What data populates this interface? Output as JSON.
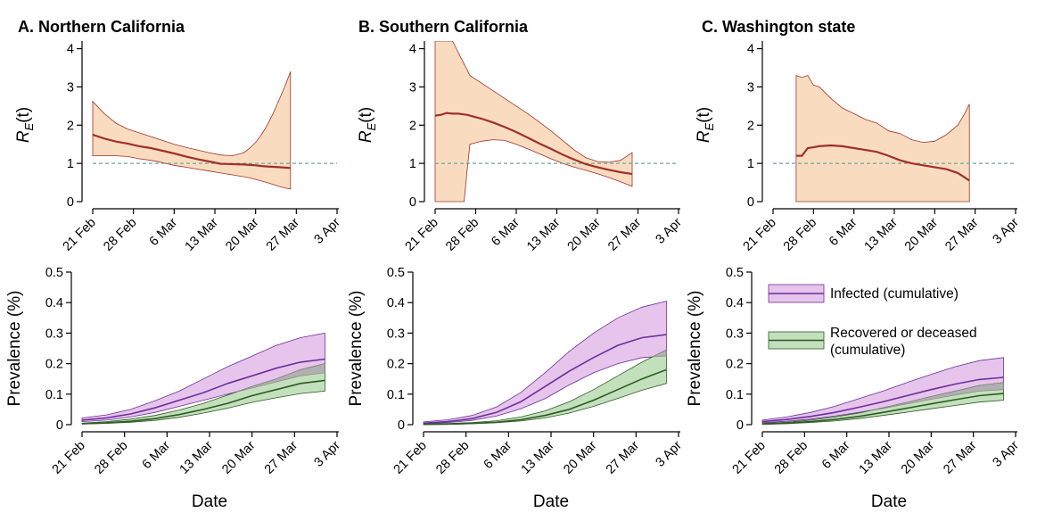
{
  "chart_data": [
    {
      "id": "A_re",
      "type": "line",
      "title": "A. Northern California",
      "ylabel_main": "R",
      "ylabel_sub": "E",
      "ylabel_suffix": "(t)",
      "xlabel": "",
      "xticks": [
        "21 Feb",
        "28 Feb",
        "6 Mar",
        "13 Mar",
        "20 Mar",
        "27 Mar",
        "3 Apr"
      ],
      "xlim": [
        0,
        42
      ],
      "ylim": [
        0,
        4.2
      ],
      "yticks": [
        "0",
        "1",
        "2",
        "3",
        "4"
      ],
      "reference_line": 1,
      "colors": {
        "band": "#f9dcc0",
        "line": "#a0302a",
        "ref": "#6aa7a0"
      },
      "series": [
        {
          "x": [
            0,
            2,
            4,
            6,
            8,
            10,
            12,
            14,
            16,
            18,
            20,
            22,
            24,
            26,
            27,
            28,
            29,
            30,
            31,
            32,
            33,
            34
          ],
          "values": [
            1.75,
            1.65,
            1.57,
            1.52,
            1.45,
            1.4,
            1.33,
            1.26,
            1.18,
            1.11,
            1.05,
            0.99,
            0.98,
            0.97,
            0.96,
            0.95,
            0.93,
            0.92,
            0.91,
            0.9,
            0.89,
            0.88
          ],
          "lower": [
            1.2,
            1.2,
            1.2,
            1.18,
            1.12,
            1.08,
            1.02,
            0.95,
            0.9,
            0.85,
            0.8,
            0.75,
            0.7,
            0.65,
            0.62,
            0.58,
            0.54,
            0.5,
            0.45,
            0.4,
            0.36,
            0.33
          ],
          "upper": [
            2.62,
            2.3,
            2.05,
            1.9,
            1.8,
            1.7,
            1.6,
            1.5,
            1.42,
            1.35,
            1.28,
            1.22,
            1.2,
            1.28,
            1.4,
            1.55,
            1.75,
            2.0,
            2.3,
            2.65,
            3.0,
            3.4
          ]
        }
      ]
    },
    {
      "id": "B_re",
      "type": "line",
      "title": "B. Southern California",
      "ylabel_main": "R",
      "ylabel_sub": "E",
      "ylabel_suffix": "(t)",
      "xlabel": "",
      "xticks": [
        "21 Feb",
        "28 Feb",
        "6 Mar",
        "13 Mar",
        "20 Mar",
        "27 Mar",
        "3 Apr"
      ],
      "xlim": [
        0,
        42
      ],
      "ylim": [
        0,
        4.2
      ],
      "yticks": [
        "0",
        "1",
        "2",
        "3",
        "4"
      ],
      "reference_line": 1,
      "colors": {
        "band": "#f9dcc0",
        "line": "#a0302a",
        "ref": "#6aa7a0"
      },
      "series": [
        {
          "x": [
            0,
            1,
            2,
            3,
            4,
            5,
            5.5,
            6,
            8,
            10,
            12,
            14,
            16,
            18,
            20,
            22,
            24,
            26,
            28,
            30,
            32,
            34
          ],
          "values": [
            2.25,
            2.27,
            2.32,
            2.3,
            2.3,
            2.28,
            2.27,
            2.25,
            2.17,
            2.07,
            1.95,
            1.82,
            1.67,
            1.52,
            1.38,
            1.23,
            1.1,
            0.98,
            0.9,
            0.83,
            0.77,
            0.72
          ],
          "lower": [
            0,
            0,
            0,
            0,
            0,
            0,
            0.8,
            1.5,
            1.58,
            1.62,
            1.6,
            1.5,
            1.38,
            1.25,
            1.12,
            1.0,
            0.9,
            0.82,
            0.73,
            0.63,
            0.52,
            0.4
          ],
          "upper": [
            4.2,
            4.2,
            4.2,
            4.2,
            3.9,
            3.6,
            3.45,
            3.3,
            3.1,
            2.9,
            2.7,
            2.5,
            2.3,
            2.08,
            1.85,
            1.6,
            1.35,
            1.15,
            1.05,
            1.03,
            1.08,
            1.28
          ]
        }
      ]
    },
    {
      "id": "C_re",
      "type": "line",
      "title": "C. Washington state",
      "ylabel_main": "R",
      "ylabel_sub": "E",
      "ylabel_suffix": "(t)",
      "xlabel": "",
      "xticks": [
        "21 Feb",
        "28 Feb",
        "6 Mar",
        "13 Mar",
        "20 Mar",
        "27 Mar",
        "3 Apr"
      ],
      "xlim": [
        0,
        42
      ],
      "ylim": [
        0,
        4.2
      ],
      "yticks": [
        "0",
        "1",
        "2",
        "3",
        "4"
      ],
      "reference_line": 1,
      "colors": {
        "band": "#f9dcc0",
        "line": "#a0302a",
        "ref": "#6aa7a0"
      },
      "series": [
        {
          "x": [
            4,
            5,
            6,
            7,
            8,
            10,
            12,
            14,
            16,
            18,
            20,
            22,
            24,
            26,
            28,
            30,
            32,
            33,
            34
          ],
          "values": [
            1.2,
            1.2,
            1.4,
            1.42,
            1.45,
            1.47,
            1.45,
            1.4,
            1.35,
            1.3,
            1.2,
            1.08,
            1.0,
            0.95,
            0.9,
            0.85,
            0.75,
            0.65,
            0.55
          ],
          "lower": [
            0,
            0,
            0,
            0,
            0,
            0,
            0,
            0,
            0,
            0,
            0,
            0,
            0,
            0,
            0,
            0,
            0,
            0,
            0
          ],
          "upper": [
            3.3,
            3.25,
            3.3,
            3.05,
            3.0,
            2.7,
            2.45,
            2.3,
            2.15,
            2.05,
            1.85,
            1.78,
            1.62,
            1.55,
            1.58,
            1.75,
            2.0,
            2.25,
            2.55
          ]
        }
      ]
    },
    {
      "id": "A_prev",
      "type": "area",
      "title": "",
      "ylabel": "Prevalence (%)",
      "xlabel": "Date",
      "xticks": [
        "21 Feb",
        "28 Feb",
        "6 Mar",
        "13 Mar",
        "20 Mar",
        "27 Mar",
        "3 Apr"
      ],
      "xlim": [
        0,
        42
      ],
      "ylim": [
        0,
        0.5
      ],
      "yticks": [
        "0",
        "0.1",
        "0.2",
        "0.3",
        "0.4",
        "0.5"
      ],
      "colors": {
        "infected_band": "#e7c4eb",
        "infected_line": "#6a2f9a",
        "recovered_band": "#c3e0bd",
        "recovered_line": "#2d5a23",
        "overlap": "#b0b0b0"
      },
      "x": [
        0,
        4,
        8,
        12,
        16,
        20,
        24,
        28,
        32,
        36,
        40
      ],
      "series": [
        {
          "name": "Infected (cumulative)",
          "values": [
            0.015,
            0.022,
            0.035,
            0.055,
            0.08,
            0.105,
            0.135,
            0.16,
            0.185,
            0.205,
            0.215
          ],
          "lower": [
            0.01,
            0.015,
            0.025,
            0.04,
            0.06,
            0.08,
            0.1,
            0.12,
            0.14,
            0.16,
            0.17
          ],
          "upper": [
            0.022,
            0.032,
            0.05,
            0.078,
            0.11,
            0.15,
            0.19,
            0.225,
            0.26,
            0.285,
            0.3
          ]
        },
        {
          "name": "Recovered or deceased (cumulative)",
          "values": [
            0.003,
            0.006,
            0.011,
            0.02,
            0.033,
            0.05,
            0.07,
            0.095,
            0.115,
            0.135,
            0.145
          ],
          "lower": [
            0.002,
            0.004,
            0.008,
            0.014,
            0.024,
            0.038,
            0.054,
            0.073,
            0.088,
            0.102,
            0.11
          ],
          "upper": [
            0.005,
            0.01,
            0.018,
            0.03,
            0.048,
            0.07,
            0.097,
            0.125,
            0.15,
            0.18,
            0.2
          ]
        }
      ]
    },
    {
      "id": "B_prev",
      "type": "area",
      "title": "",
      "ylabel": "Prevalence (%)",
      "xlabel": "Date",
      "xticks": [
        "21 Feb",
        "28 Feb",
        "6 Mar",
        "13 Mar",
        "20 Mar",
        "27 Mar",
        "3 Apr"
      ],
      "xlim": [
        0,
        42
      ],
      "ylim": [
        0,
        0.5
      ],
      "yticks": [
        "0",
        "0.1",
        "0.2",
        "0.3",
        "0.4",
        "0.5"
      ],
      "colors": {
        "infected_band": "#e7c4eb",
        "infected_line": "#6a2f9a",
        "recovered_band": "#c3e0bd",
        "recovered_line": "#2d5a23",
        "overlap": "#b0b0b0"
      },
      "x": [
        0,
        4,
        8,
        12,
        16,
        20,
        24,
        28,
        32,
        36,
        40
      ],
      "series": [
        {
          "name": "Infected (cumulative)",
          "values": [
            0.005,
            0.01,
            0.02,
            0.04,
            0.075,
            0.125,
            0.175,
            0.22,
            0.26,
            0.285,
            0.295
          ],
          "lower": [
            0.003,
            0.007,
            0.014,
            0.028,
            0.052,
            0.085,
            0.13,
            0.17,
            0.2,
            0.22,
            0.225
          ],
          "upper": [
            0.009,
            0.016,
            0.03,
            0.058,
            0.105,
            0.17,
            0.24,
            0.3,
            0.35,
            0.385,
            0.405
          ]
        },
        {
          "name": "Recovered or deceased (cumulative)",
          "values": [
            0.001,
            0.002,
            0.004,
            0.008,
            0.016,
            0.03,
            0.05,
            0.08,
            0.115,
            0.15,
            0.18
          ],
          "lower": [
            0.0,
            0.001,
            0.003,
            0.006,
            0.012,
            0.022,
            0.038,
            0.06,
            0.086,
            0.113,
            0.135
          ],
          "upper": [
            0.002,
            0.004,
            0.007,
            0.013,
            0.025,
            0.045,
            0.075,
            0.115,
            0.16,
            0.205,
            0.245
          ]
        }
      ]
    },
    {
      "id": "C_prev",
      "type": "area",
      "title": "",
      "ylabel": "Prevalence (%)",
      "xlabel": "Date",
      "xticks": [
        "21 Feb",
        "28 Feb",
        "6 Mar",
        "13 Mar",
        "20 Mar",
        "27 Mar",
        "3 Apr"
      ],
      "xlim": [
        0,
        42
      ],
      "ylim": [
        0,
        0.5
      ],
      "yticks": [
        "0",
        "0.1",
        "0.2",
        "0.3",
        "0.4",
        "0.5"
      ],
      "colors": {
        "infected_band": "#e7c4eb",
        "infected_line": "#6a2f9a",
        "recovered_band": "#c3e0bd",
        "recovered_line": "#2d5a23",
        "overlap": "#b0b0b0"
      },
      "x": [
        0,
        4,
        8,
        12,
        16,
        20,
        24,
        28,
        32,
        36,
        40
      ],
      "series": [
        {
          "name": "Infected (cumulative)",
          "values": [
            0.01,
            0.017,
            0.027,
            0.04,
            0.057,
            0.075,
            0.095,
            0.115,
            0.133,
            0.148,
            0.155
          ],
          "lower": [
            0.006,
            0.011,
            0.018,
            0.028,
            0.04,
            0.053,
            0.068,
            0.083,
            0.097,
            0.11,
            0.115
          ],
          "upper": [
            0.015,
            0.025,
            0.04,
            0.06,
            0.085,
            0.11,
            0.138,
            0.165,
            0.19,
            0.21,
            0.22
          ]
        },
        {
          "name": "Recovered or deceased (cumulative)",
          "values": [
            0.002,
            0.005,
            0.01,
            0.017,
            0.027,
            0.04,
            0.054,
            0.068,
            0.082,
            0.095,
            0.102
          ],
          "lower": [
            0.001,
            0.003,
            0.007,
            0.012,
            0.02,
            0.03,
            0.041,
            0.052,
            0.063,
            0.074,
            0.08
          ],
          "upper": [
            0.004,
            0.008,
            0.015,
            0.025,
            0.038,
            0.055,
            0.073,
            0.092,
            0.11,
            0.128,
            0.138
          ]
        }
      ]
    }
  ],
  "legend": {
    "placement": "top-right of panel C prevalence",
    "items": [
      {
        "label": "Infected (cumulative)",
        "band": "#e7c4eb",
        "line": "#6a2f9a"
      },
      {
        "label_line1": "Recovered or deceased",
        "label_line2": "(cumulative)",
        "band": "#c3e0bd",
        "line": "#2d5a23"
      }
    ]
  }
}
